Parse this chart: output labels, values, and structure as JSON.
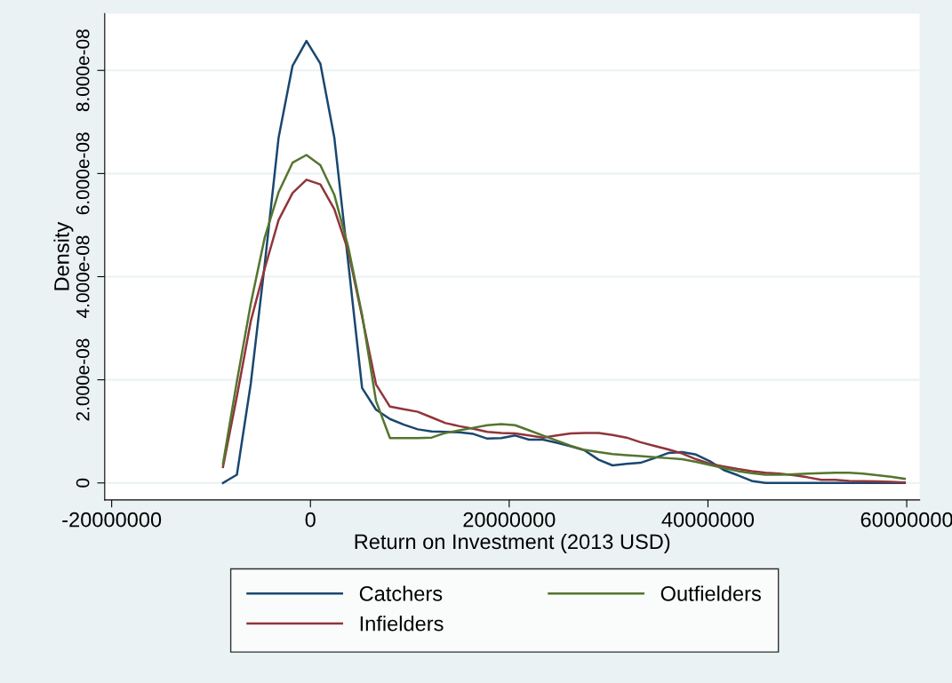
{
  "chart_data": {
    "type": "line",
    "xlabel": "Return on Investment (2013 USD)",
    "ylabel": "Density",
    "x": [
      -8800000,
      -7400000,
      -6000000,
      -4600000,
      -3200000,
      -1800000,
      -400000,
      1000000,
      2400000,
      3800000,
      5200000,
      6600000,
      8000000,
      9400000,
      10800000,
      12200000,
      13600000,
      15000000,
      16400000,
      17800000,
      19200000,
      20600000,
      22000000,
      23400000,
      24800000,
      26200000,
      27600000,
      29000000,
      30400000,
      31800000,
      33200000,
      34600000,
      36000000,
      37400000,
      38800000,
      40200000,
      41600000,
      43000000,
      44400000,
      45800000,
      47200000,
      48600000,
      50000000,
      51400000,
      52800000,
      54200000,
      55600000,
      57000000,
      58400000,
      59800000
    ],
    "series": [
      {
        "name": "Catchers",
        "color": "#1a476f",
        "values": [
          0,
          1.6e-09,
          1.93e-08,
          4.24e-08,
          6.7e-08,
          8.09e-08,
          8.57e-08,
          8.13e-08,
          6.7e-08,
          4.28e-08,
          1.84e-08,
          1.42e-08,
          1.24e-08,
          1.13e-08,
          1.04e-08,
          1e-08,
          9.9e-09,
          9.8e-09,
          9.5e-09,
          8.6e-09,
          8.7e-09,
          9.2e-09,
          8.4e-09,
          8.4e-09,
          7.8e-09,
          7.1e-09,
          6.3e-09,
          4.5e-09,
          3.4e-09,
          3.7e-09,
          3.9e-09,
          4.8e-09,
          5.8e-09,
          6e-09,
          5.5e-09,
          4.2e-09,
          2.5e-09,
          1.5e-09,
          4e-10,
          0,
          0,
          0,
          0,
          0,
          0,
          0,
          0,
          0,
          0,
          0
        ]
      },
      {
        "name": "Infielders",
        "color": "#90353b",
        "values": [
          3.1e-09,
          1.68e-08,
          3.14e-08,
          4.16e-08,
          5.1e-08,
          5.62e-08,
          5.88e-08,
          5.79e-08,
          5.31e-08,
          4.5e-08,
          3.22e-08,
          1.91e-08,
          1.48e-08,
          1.43e-08,
          1.38e-08,
          1.27e-08,
          1.16e-08,
          1.1e-08,
          1.05e-08,
          9.9e-09,
          9.7e-09,
          9.6e-09,
          9.2e-09,
          8.8e-09,
          9.2e-09,
          9.6e-09,
          9.7e-09,
          9.7e-09,
          9.3e-09,
          8.8e-09,
          7.9e-09,
          7.2e-09,
          6.5e-09,
          5.7e-09,
          4.6e-09,
          3.7e-09,
          3.2e-09,
          2.7e-09,
          2.3e-09,
          2e-09,
          1.8e-09,
          1.5e-09,
          1.1e-09,
          6e-10,
          6e-10,
          4e-10,
          3.5e-10,
          3e-10,
          2e-10,
          1e-10
        ]
      },
      {
        "name": "Outfielders",
        "color": "#55752f",
        "values": [
          3.7e-09,
          1.97e-08,
          3.48e-08,
          4.76e-08,
          5.64e-08,
          6.21e-08,
          6.36e-08,
          6.16e-08,
          5.59e-08,
          4.58e-08,
          3.26e-08,
          1.59e-08,
          8.7e-09,
          8.7e-09,
          8.7e-09,
          8.8e-09,
          9.7e-09,
          1.02e-08,
          1.07e-08,
          1.12e-08,
          1.14e-08,
          1.12e-08,
          1.02e-08,
          9.2e-09,
          8.2e-09,
          7.2e-09,
          6.4e-09,
          6e-09,
          5.6e-09,
          5.4e-09,
          5.2e-09,
          5e-09,
          4.8e-09,
          4.6e-09,
          4.1e-09,
          3.5e-09,
          2.9e-09,
          2.3e-09,
          1.9e-09,
          1.6e-09,
          1.6e-09,
          1.7e-09,
          1.8e-09,
          1.9e-09,
          2e-09,
          2e-09,
          1.8e-09,
          1.5e-09,
          1.2e-09,
          8e-10
        ]
      }
    ],
    "xlim": [
      -20700000,
      61300000
    ],
    "xticks": [
      -20000000,
      0,
      20000000,
      40000000,
      60000000
    ],
    "ylim": [
      -3.3e-09,
      9.1e-08
    ],
    "yticks": [
      0,
      {
        "value": 2e-08,
        "label": "2.000e-08"
      },
      {
        "value": 4e-08,
        "label": "4.000e-08"
      },
      {
        "value": 6e-08,
        "label": "6.000e-08"
      },
      {
        "value": 8e-08,
        "label": "8.000e-08"
      }
    ],
    "grid": "y",
    "legend": "bottom",
    "marker": "none",
    "line_style": "solid"
  }
}
